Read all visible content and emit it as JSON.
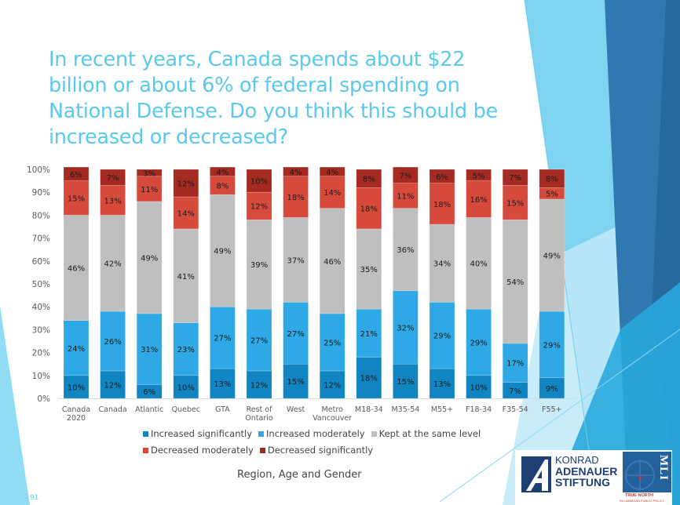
{
  "slide": {
    "title": "In recent years, Canada spends about $22 billion or about 6% of federal spending on National Defense. Do you think this should be increased or decreased?",
    "page_number": "91"
  },
  "logos": {
    "kas_line1": "KONRAD",
    "kas_line2": "ADENAUER",
    "kas_line3": "STIFTUNG",
    "mli_letters": "MLI",
    "mli_tagline1": "TRUE NORTH",
    "mli_tagline2": "IN CANADIAN PUBLIC POLICY"
  },
  "colors": {
    "increased_significantly": "#1184c2",
    "increased_moderately": "#2ea9e6",
    "kept_same": "#bfbfbf",
    "decreased_moderately": "#d64a3b",
    "decreased_significantly": "#a52a22",
    "title": "#5bc8ec"
  },
  "chart_data": {
    "type": "bar",
    "stacked": true,
    "title": "",
    "xlabel": "Region, Age and Gender",
    "ylabel": "",
    "ylim": [
      0,
      100
    ],
    "yticks": [
      "0%",
      "10%",
      "20%",
      "30%",
      "40%",
      "50%",
      "60%",
      "70%",
      "80%",
      "90%",
      "100%"
    ],
    "grid": false,
    "legend_position": "bottom",
    "categories": [
      "Canada 2020",
      "Canada",
      "Atlantic",
      "Quebec",
      "GTA",
      "Rest of Ontario",
      "West",
      "Metro Vancouver",
      "M18-34",
      "M35-54",
      "M55+",
      "F18-34",
      "F35-54",
      "F55+"
    ],
    "category_lines": [
      [
        "Canada",
        "2020"
      ],
      [
        "Canada"
      ],
      [
        "Atlantic"
      ],
      [
        "Quebec"
      ],
      [
        "GTA"
      ],
      [
        "Rest of",
        "Ontario"
      ],
      [
        "West"
      ],
      [
        "Metro",
        "Vancouver"
      ],
      [
        "M18-34"
      ],
      [
        "M35-54"
      ],
      [
        "M55+"
      ],
      [
        "F18-34"
      ],
      [
        "F35-54"
      ],
      [
        "F55+"
      ]
    ],
    "series": [
      {
        "name": "Increased significantly",
        "key": "increased_significantly",
        "values": [
          10,
          12,
          6,
          10,
          13,
          12,
          15,
          12,
          18,
          15,
          13,
          10,
          7,
          9
        ]
      },
      {
        "name": "Increased moderately",
        "key": "increased_moderately",
        "values": [
          24,
          26,
          31,
          23,
          27,
          27,
          27,
          25,
          21,
          32,
          29,
          29,
          17,
          29
        ]
      },
      {
        "name": "Kept at the same level",
        "key": "kept_same",
        "values": [
          46,
          42,
          49,
          41,
          49,
          39,
          37,
          46,
          35,
          36,
          34,
          40,
          54,
          49
        ]
      },
      {
        "name": "Decreased moderately",
        "key": "decreased_moderately",
        "values": [
          15,
          13,
          11,
          14,
          8,
          12,
          18,
          14,
          18,
          11,
          18,
          16,
          15,
          5
        ]
      },
      {
        "name": "Decreased significantly",
        "key": "decreased_significantly",
        "values": [
          6,
          7,
          3,
          12,
          4,
          10,
          4,
          4,
          8,
          7,
          6,
          5,
          7,
          8
        ]
      }
    ]
  },
  "legend": {
    "row1": [
      {
        "label": "Increased significantly",
        "key": "increased_significantly"
      },
      {
        "label": "Increased moderately",
        "key": "increased_moderately"
      },
      {
        "label": "Kept at the same level",
        "key": "kept_same"
      }
    ],
    "row2": [
      {
        "label": "Decreased moderately",
        "key": "decreased_moderately"
      },
      {
        "label": "Decreased significantly",
        "key": "decreased_significantly"
      }
    ]
  }
}
